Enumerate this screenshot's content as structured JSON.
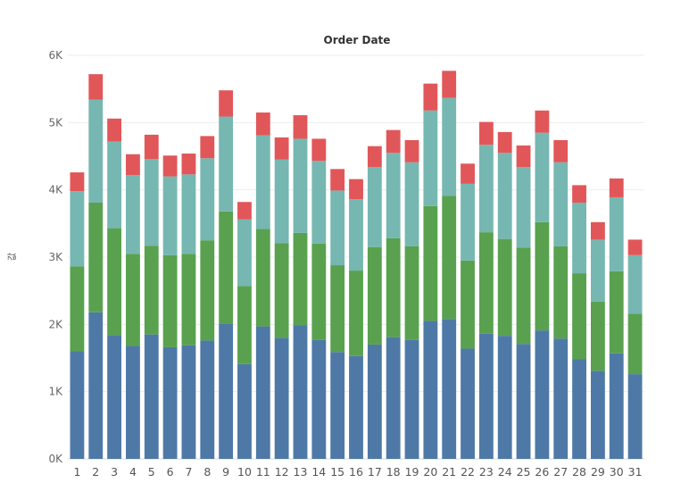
{
  "chart_data": {
    "type": "bar",
    "stacked": true,
    "title": "Order Date",
    "xlabel": "",
    "ylabel": "값",
    "ylim": [
      0,
      6000
    ],
    "y_ticks": [
      "0K",
      "1K",
      "2K",
      "3K",
      "4K",
      "5K",
      "6K"
    ],
    "grid": true,
    "legend": "none",
    "categories": [
      "1",
      "2",
      "3",
      "4",
      "5",
      "6",
      "7",
      "8",
      "9",
      "10",
      "11",
      "12",
      "13",
      "14",
      "15",
      "16",
      "17",
      "18",
      "19",
      "20",
      "21",
      "22",
      "23",
      "24",
      "25",
      "26",
      "27",
      "28",
      "29",
      "30",
      "31"
    ],
    "series": [
      {
        "color": "#4e79a7",
        "values": [
          1600,
          2180,
          1840,
          1680,
          1850,
          1660,
          1690,
          1760,
          2010,
          1410,
          1970,
          1800,
          1990,
          1770,
          1590,
          1530,
          1700,
          1810,
          1770,
          2050,
          2080,
          1640,
          1860,
          1830,
          1710,
          1910,
          1790,
          1480,
          1310,
          1570,
          1260
        ]
      },
      {
        "color": "#59a14f",
        "values": [
          1260,
          1630,
          1590,
          1370,
          1320,
          1370,
          1360,
          1490,
          1670,
          1160,
          1450,
          1410,
          1370,
          1430,
          1290,
          1270,
          1450,
          1470,
          1390,
          1710,
          1830,
          1310,
          1510,
          1440,
          1430,
          1610,
          1370,
          1280,
          1030,
          1220,
          900
        ]
      },
      {
        "color": "#76b7b2",
        "values": [
          1120,
          1530,
          1290,
          1170,
          1290,
          1170,
          1180,
          1220,
          1410,
          990,
          1390,
          1240,
          1400,
          1230,
          1110,
          1060,
          1190,
          1270,
          1250,
          1420,
          1460,
          1140,
          1300,
          1280,
          1200,
          1330,
          1250,
          1050,
          920,
          1100,
          870
        ]
      },
      {
        "color": "#e15759",
        "values": [
          280,
          380,
          340,
          310,
          360,
          310,
          310,
          330,
          390,
          260,
          340,
          330,
          350,
          330,
          320,
          300,
          310,
          340,
          330,
          400,
          400,
          300,
          340,
          310,
          320,
          330,
          330,
          260,
          260,
          280,
          230
        ]
      }
    ]
  }
}
